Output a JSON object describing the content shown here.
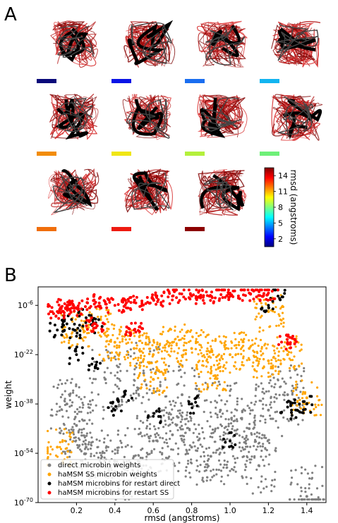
{
  "panels": {
    "a": "A",
    "b": "B"
  },
  "colorbar": {
    "label": "rmsd (angstroms)",
    "ticks": [
      "14",
      "11",
      "8",
      "5",
      "2"
    ],
    "tick_values": [
      14,
      11,
      8,
      5,
      2
    ],
    "range": [
      0.5,
      15.5
    ],
    "gradient": [
      "#00007f",
      "#0000ff",
      "#007fff",
      "#00ffff",
      "#7fff7f",
      "#ffff00",
      "#ff7f00",
      "#ff0000",
      "#7f0000"
    ]
  },
  "structure_tiles": [
    {
      "swatch": "#0a0a7a"
    },
    {
      "swatch": "#0a14e6"
    },
    {
      "swatch": "#1a6ef0"
    },
    {
      "swatch": "#12b4f0"
    },
    {
      "swatch": "#f28c0a"
    },
    {
      "swatch": "#f0e614"
    },
    {
      "swatch": "#b4f03c"
    },
    {
      "swatch": "#6ef078"
    },
    {
      "swatch": "#f06e0a"
    },
    {
      "swatch": "#ee1a10"
    },
    {
      "swatch": "#8c0000"
    }
  ],
  "chart_data": {
    "type": "scatter",
    "title": "",
    "xlabel": "rmsd (angstroms)",
    "ylabel": "weight",
    "x_scale": "linear",
    "y_scale": "log",
    "xlim": [
      0.0,
      1.5
    ],
    "ylim_log10": [
      -70,
      0
    ],
    "xticks": [
      0.2,
      0.4,
      0.6,
      0.8,
      1.0,
      1.2,
      1.4
    ],
    "xtick_labels": [
      "0.2",
      "0.4",
      "0.6",
      "0.8",
      "1.0",
      "1.2",
      "1.4"
    ],
    "yticks_log10": [
      -6,
      -22,
      -38,
      -54,
      -70
    ],
    "ytick_bases": [
      "10",
      "10",
      "10",
      "10",
      "10"
    ],
    "ytick_exps": [
      "-6",
      "-22",
      "-38",
      "-54",
      "-70"
    ],
    "legend_position": "bottom-left",
    "series": [
      {
        "name": "direct microbin weights",
        "color": "#808080",
        "points": [
          [
            0.15,
            -38
          ],
          [
            0.2,
            -45
          ],
          [
            0.25,
            -52
          ],
          [
            0.3,
            -58
          ],
          [
            0.4,
            -60
          ],
          [
            0.5,
            -55
          ],
          [
            0.6,
            -50
          ],
          [
            0.7,
            -48
          ],
          [
            0.8,
            -52
          ],
          [
            0.9,
            -55
          ],
          [
            1.0,
            -50
          ],
          [
            1.1,
            -46
          ],
          [
            1.2,
            -40
          ],
          [
            1.3,
            -35
          ],
          [
            1.4,
            -68
          ],
          [
            0.35,
            -30
          ],
          [
            0.55,
            -28
          ],
          [
            0.75,
            -35
          ],
          [
            0.95,
            -40
          ],
          [
            1.15,
            -58
          ]
        ]
      },
      {
        "name": "haMSM SS microbin weights",
        "color": "#ffa500",
        "points": [
          [
            0.2,
            -14
          ],
          [
            0.3,
            -12
          ],
          [
            0.4,
            -18
          ],
          [
            0.5,
            -20
          ],
          [
            0.6,
            -22
          ],
          [
            0.7,
            -18
          ],
          [
            0.8,
            -20
          ],
          [
            0.9,
            -21
          ],
          [
            1.0,
            -22
          ],
          [
            1.1,
            -20
          ],
          [
            1.2,
            -24
          ],
          [
            1.3,
            -22
          ],
          [
            1.4,
            -36
          ],
          [
            0.1,
            -52
          ],
          [
            0.6,
            -30
          ],
          [
            0.9,
            -28
          ],
          [
            1.2,
            -8
          ]
        ]
      },
      {
        "name": "haMSM microbins for restart direct",
        "color": "#000000",
        "points": [
          [
            0.1,
            -14
          ],
          [
            0.15,
            -12
          ],
          [
            0.2,
            -16
          ],
          [
            0.25,
            -10
          ],
          [
            0.3,
            -12
          ],
          [
            0.2,
            -22
          ],
          [
            0.3,
            -26
          ],
          [
            0.45,
            -34
          ],
          [
            0.4,
            -40
          ],
          [
            0.6,
            -42
          ],
          [
            0.8,
            -38
          ],
          [
            1.0,
            -50
          ],
          [
            1.3,
            -39
          ],
          [
            1.35,
            -40
          ],
          [
            1.4,
            -38
          ],
          [
            1.25,
            -3
          ],
          [
            1.2,
            -6
          ]
        ]
      },
      {
        "name": "haMSM microbins for restart SS",
        "color": "#ff0000",
        "points": [
          [
            0.1,
            -8
          ],
          [
            0.15,
            -6
          ],
          [
            0.2,
            -7
          ],
          [
            0.3,
            -5
          ],
          [
            0.4,
            -6
          ],
          [
            0.5,
            -5
          ],
          [
            0.6,
            -4
          ],
          [
            0.7,
            -3
          ],
          [
            0.8,
            -3
          ],
          [
            0.9,
            -3
          ],
          [
            1.0,
            -2
          ],
          [
            1.1,
            -2
          ],
          [
            1.2,
            -2
          ],
          [
            1.3,
            -18
          ],
          [
            0.3,
            -12
          ],
          [
            0.5,
            -14
          ]
        ]
      }
    ]
  }
}
